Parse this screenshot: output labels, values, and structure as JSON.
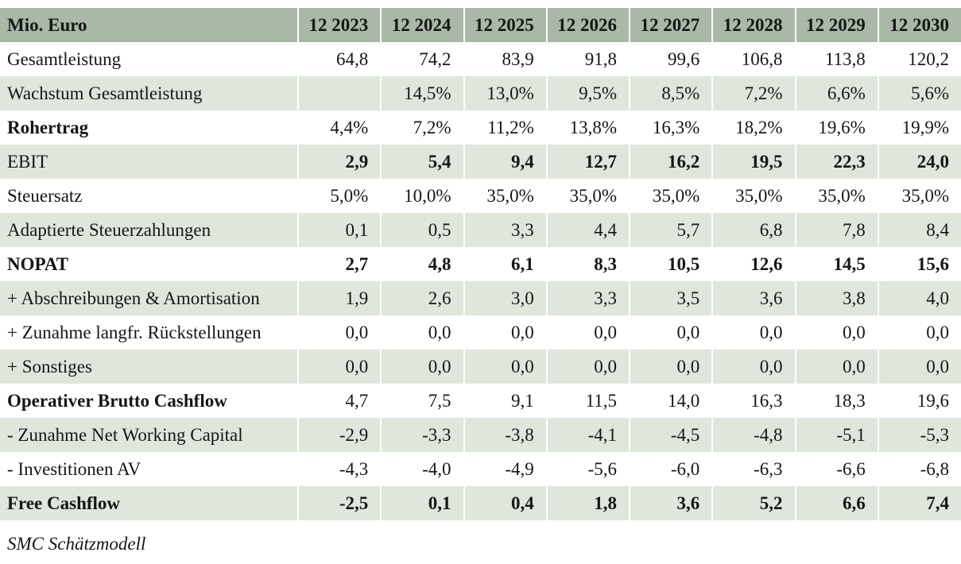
{
  "table": {
    "columns": [
      "Mio. Euro",
      "12 2023",
      "12 2024",
      "12 2025",
      "12 2026",
      "12 2027",
      "12 2028",
      "12 2029",
      "12 2030"
    ],
    "rows": [
      {
        "label": "Gesamtleistung",
        "label_bold": false,
        "values_bold": false,
        "values": [
          "64,8",
          "74,2",
          "83,9",
          "91,8",
          "99,6",
          "106,8",
          "113,8",
          "120,2"
        ]
      },
      {
        "label": "Wachstum Gesamtleistung",
        "label_bold": false,
        "values_bold": false,
        "values": [
          "",
          "14,5%",
          "13,0%",
          "9,5%",
          "8,5%",
          "7,2%",
          "6,6%",
          "5,6%"
        ]
      },
      {
        "label": "Rohertrag",
        "label_bold": true,
        "values_bold": false,
        "values": [
          "4,4%",
          "7,2%",
          "11,2%",
          "13,8%",
          "16,3%",
          "18,2%",
          "19,6%",
          "19,9%"
        ]
      },
      {
        "label": "EBIT",
        "label_bold": false,
        "values_bold": true,
        "values": [
          "2,9",
          "5,4",
          "9,4",
          "12,7",
          "16,2",
          "19,5",
          "22,3",
          "24,0"
        ]
      },
      {
        "label": "Steuersatz",
        "label_bold": false,
        "values_bold": false,
        "values": [
          "5,0%",
          "10,0%",
          "35,0%",
          "35,0%",
          "35,0%",
          "35,0%",
          "35,0%",
          "35,0%"
        ]
      },
      {
        "label": "Adaptierte Steuerzahlungen",
        "label_bold": false,
        "values_bold": false,
        "values": [
          "0,1",
          "0,5",
          "3,3",
          "4,4",
          "5,7",
          "6,8",
          "7,8",
          "8,4"
        ]
      },
      {
        "label": "NOPAT",
        "label_bold": true,
        "values_bold": true,
        "values": [
          "2,7",
          "4,8",
          "6,1",
          "8,3",
          "10,5",
          "12,6",
          "14,5",
          "15,6"
        ]
      },
      {
        "label": "+ Abschreibungen & Amortisation",
        "label_bold": false,
        "values_bold": false,
        "values": [
          "1,9",
          "2,6",
          "3,0",
          "3,3",
          "3,5",
          "3,6",
          "3,8",
          "4,0"
        ]
      },
      {
        "label": "+ Zunahme langfr. Rückstellungen",
        "label_bold": false,
        "values_bold": false,
        "values": [
          "0,0",
          "0,0",
          "0,0",
          "0,0",
          "0,0",
          "0,0",
          "0,0",
          "0,0"
        ]
      },
      {
        "label": "+ Sonstiges",
        "label_bold": false,
        "values_bold": false,
        "values": [
          "0,0",
          "0,0",
          "0,0",
          "0,0",
          "0,0",
          "0,0",
          "0,0",
          "0,0"
        ]
      },
      {
        "label": "Operativer Brutto Cashflow",
        "label_bold": true,
        "values_bold": false,
        "values": [
          "4,7",
          "7,5",
          "9,1",
          "11,5",
          "14,0",
          "16,3",
          "18,3",
          "19,6"
        ]
      },
      {
        "label": "- Zunahme Net Working Capital",
        "label_bold": false,
        "values_bold": false,
        "values": [
          "-2,9",
          "-3,3",
          "-3,8",
          "-4,1",
          "-4,5",
          "-4,8",
          "-5,1",
          "-5,3"
        ]
      },
      {
        "label": "- Investitionen AV",
        "label_bold": false,
        "values_bold": false,
        "values": [
          "-4,3",
          "-4,0",
          "-4,9",
          "-5,6",
          "-6,0",
          "-6,3",
          "-6,6",
          "-6,8"
        ]
      },
      {
        "label": "Free Cashflow",
        "label_bold": true,
        "values_bold": true,
        "values": [
          "-2,5",
          "0,1",
          "0,4",
          "1,8",
          "3,6",
          "5,2",
          "6,6",
          "7,4"
        ]
      }
    ]
  },
  "footer": {
    "note": "SMC Schätzmodell"
  },
  "colors": {
    "header_bg": "#a9b8a7",
    "row_alt_bg": "#dfe6dc",
    "separator": "#ffffff",
    "text": "#161616"
  }
}
